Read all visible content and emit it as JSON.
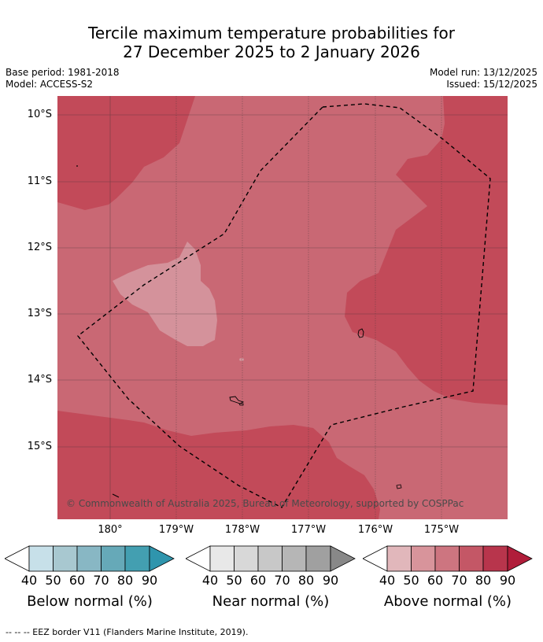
{
  "title": {
    "line1": "Tercile maximum temperature probabilities for",
    "line2": "27 December 2025 to 2 January 2026"
  },
  "meta": {
    "base_period": "Base period: 1981-2018",
    "model": "Model: ACCESS-S2",
    "model_run": "Model run: 13/12/2025",
    "issued": "Issued: 15/12/2025"
  },
  "map": {
    "lat_labels": [
      "10°S",
      "11°S",
      "12°S",
      "13°S",
      "14°S",
      "15°S"
    ],
    "lon_labels": [
      "180°",
      "179°W",
      "178°W",
      "177°W",
      "176°W",
      "175°W"
    ],
    "copyright": "© Commonwealth of Australia 2025, Bureau of Meteorology, supported by COSPPac",
    "colors": {
      "above_60_70": "#c96874",
      "above_70_80": "#c24a59",
      "above_50_60": "#d4929b"
    }
  },
  "colorbars": [
    {
      "label": "Below normal (%)",
      "ticks": [
        "40",
        "50",
        "60",
        "70",
        "80",
        "90"
      ],
      "colors": [
        "#ffffff",
        "#c7e0e9",
        "#a8c8d0",
        "#88b7c4",
        "#66a9b8",
        "#439fb1",
        "#2f95ad"
      ]
    },
    {
      "label": "Near normal (%)",
      "ticks": [
        "40",
        "50",
        "60",
        "70",
        "80",
        "90"
      ],
      "colors": [
        "#ffffff",
        "#e8e8e8",
        "#d8d8d8",
        "#c8c8c8",
        "#b6b6b6",
        "#a0a0a0",
        "#888888"
      ]
    },
    {
      "label": "Above normal (%)",
      "ticks": [
        "40",
        "50",
        "60",
        "70",
        "80",
        "90"
      ],
      "colors": [
        "#ffffff",
        "#e1b7bb",
        "#d8949b",
        "#cd7580",
        "#c45766",
        "#b8354c",
        "#b01d3a"
      ]
    }
  ],
  "footer": "--  --  -- EEZ border V11 (Flanders Marine Institute, 2019)."
}
